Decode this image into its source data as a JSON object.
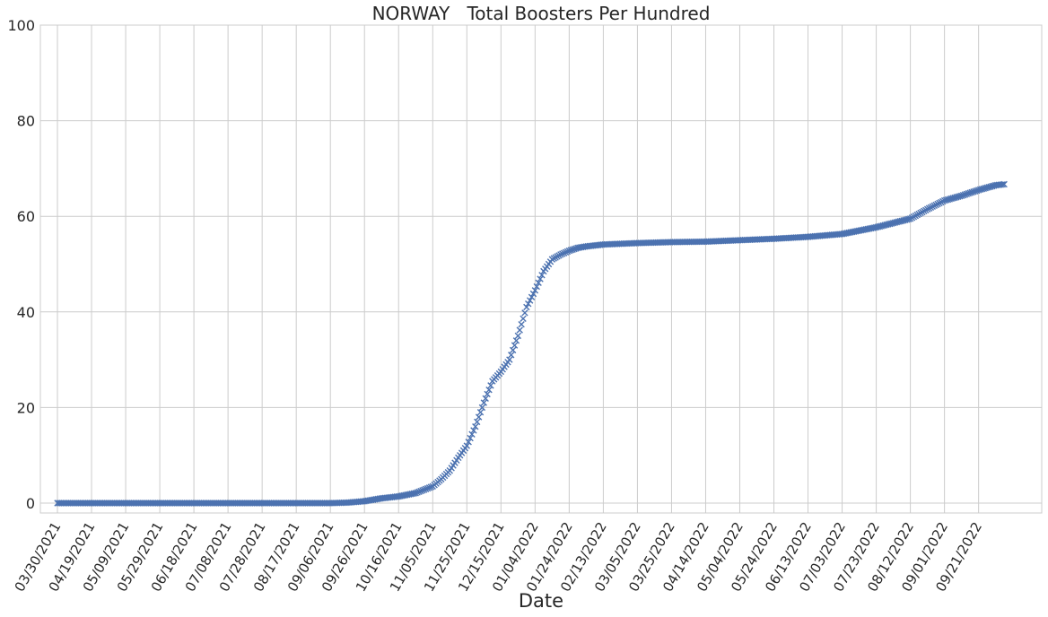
{
  "chart_data": {
    "type": "scatter",
    "title": "NORWAY   Total Boosters Per Hundred",
    "xlabel": "Date",
    "ylabel": "",
    "ylim": [
      0,
      100
    ],
    "yticks": [
      0,
      20,
      40,
      60,
      80,
      100
    ],
    "xlim": [
      "2021-03-20",
      "2022-10-28"
    ],
    "xticks": [
      "03/30/2021",
      "04/19/2021",
      "05/09/2021",
      "05/29/2021",
      "06/18/2021",
      "07/08/2021",
      "07/28/2021",
      "08/17/2021",
      "09/06/2021",
      "09/26/2021",
      "10/16/2021",
      "11/05/2021",
      "11/25/2021",
      "12/15/2021",
      "01/04/2022",
      "01/24/2022",
      "02/13/2022",
      "03/05/2022",
      "03/25/2022",
      "04/14/2022",
      "05/04/2022",
      "05/24/2022",
      "06/13/2022",
      "07/03/2022",
      "07/23/2022",
      "08/12/2022",
      "09/01/2022",
      "09/21/2022"
    ],
    "grid": true,
    "marker": "x",
    "color": "#4c72b0",
    "series": [
      {
        "x": [
          "2021-03-30",
          "2021-04-19",
          "2021-05-09",
          "2021-05-29",
          "2021-06-18",
          "2021-07-08",
          "2021-07-28",
          "2021-08-17",
          "2021-09-06",
          "2021-09-16",
          "2021-09-26",
          "2021-10-06",
          "2021-10-16",
          "2021-10-26",
          "2021-11-05",
          "2021-11-10",
          "2021-11-15",
          "2021-11-20",
          "2021-11-25",
          "2021-11-30",
          "2021-12-05",
          "2021-12-10",
          "2021-12-15",
          "2021-12-20",
          "2021-12-25",
          "2021-12-30",
          "2022-01-04",
          "2022-01-09",
          "2022-01-14",
          "2022-01-19",
          "2022-01-24",
          "2022-01-29",
          "2022-02-03",
          "2022-02-13",
          "2022-03-05",
          "2022-03-25",
          "2022-04-14",
          "2022-05-04",
          "2022-05-24",
          "2022-06-13",
          "2022-07-03",
          "2022-07-23",
          "2022-08-12",
          "2022-08-22",
          "2022-09-01",
          "2022-09-11",
          "2022-09-21",
          "2022-10-01",
          "2022-10-06"
        ],
        "y": [
          0,
          0,
          0,
          0,
          0,
          0,
          0,
          0,
          0,
          0.1,
          0.4,
          1.0,
          1.4,
          2.1,
          3.5,
          5.0,
          6.8,
          9.5,
          12.0,
          16.0,
          21.0,
          25.5,
          27.5,
          30.0,
          35.0,
          41.0,
          44.5,
          48.5,
          51.0,
          52.0,
          52.8,
          53.4,
          53.7,
          54.1,
          54.4,
          54.6,
          54.7,
          55.0,
          55.3,
          55.7,
          56.3,
          57.7,
          59.5,
          61.5,
          63.3,
          64.3,
          65.5,
          66.5,
          66.7
        ]
      }
    ]
  }
}
